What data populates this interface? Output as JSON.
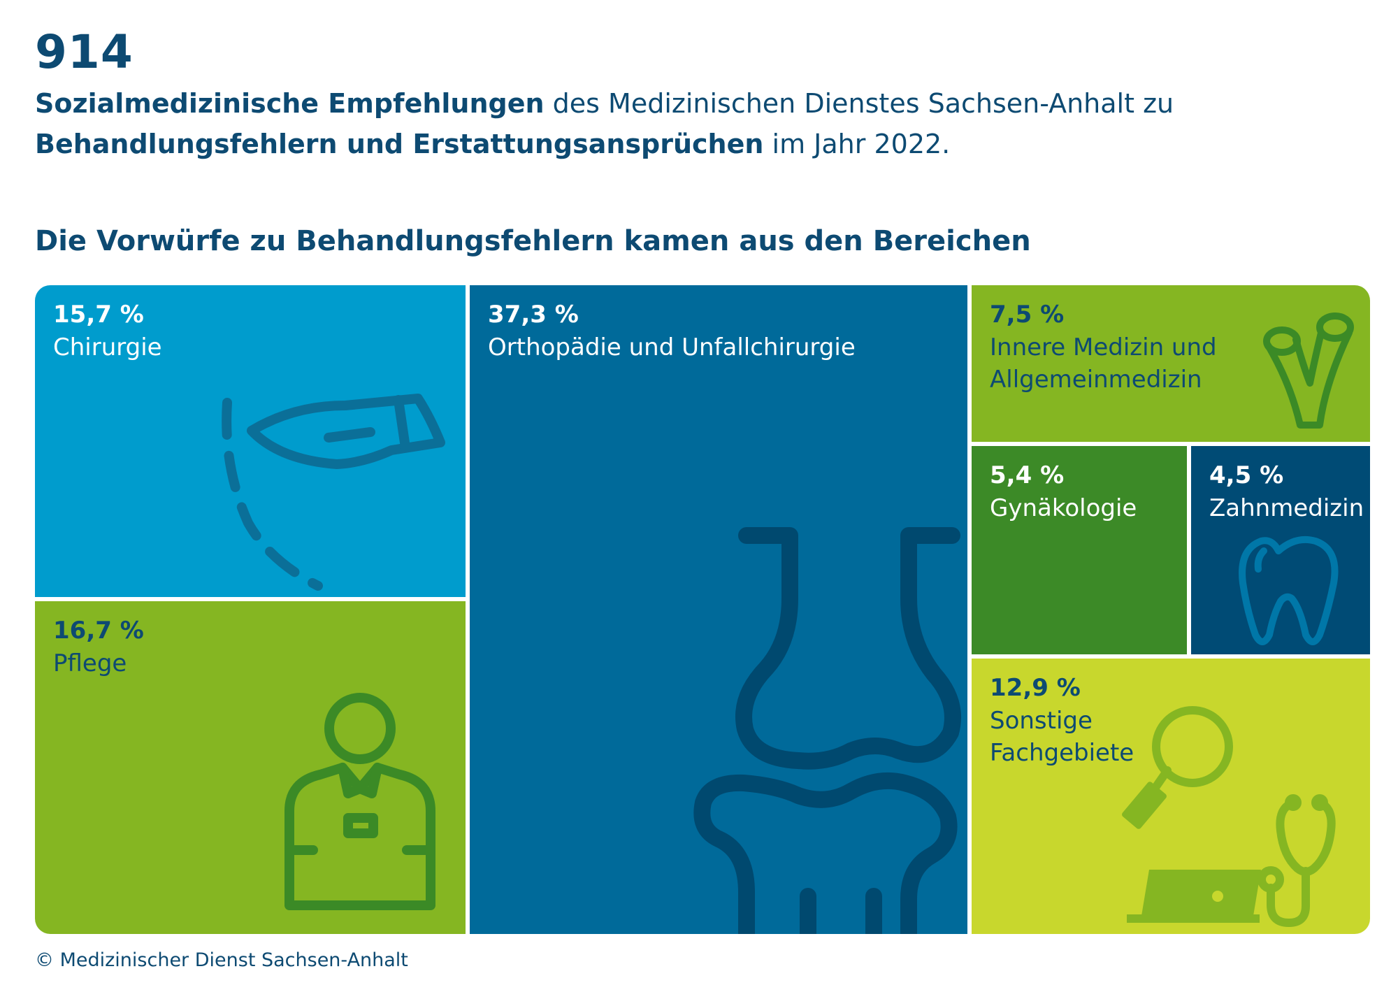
{
  "header": {
    "big_number": "914",
    "line1_bold": "Sozialmedizinische Empfehlungen",
    "line1_rest": " des Medizinischen Dienstes Sachsen-Anhalt zu",
    "line2_bold": "Behandlungsfehlern und Erstattungsansprüchen",
    "line2_rest": " im Jahr 2022.",
    "subtitle": "Die Vorwürfe zu Behandlungsfehlern kamen aus den Bereichen"
  },
  "footer": "© Medizinischer Dienst Sachsen-Anhalt",
  "chart_data": {
    "type": "treemap",
    "title": "Die Vorwürfe zu Behandlungsfehlern kamen aus den Bereichen",
    "unit": "%",
    "categories": [
      "Chirurgie",
      "Pflege",
      "Orthopädie und Unfallchirurgie",
      "Innere Medizin und Allgemeinmedizin",
      "Gynäkologie",
      "Zahnmedizin",
      "Sonstige Fachgebiete"
    ],
    "values": [
      15.7,
      16.7,
      37.3,
      7.5,
      5.4,
      4.5,
      12.9
    ],
    "tiles": [
      {
        "key": "chirurgie",
        "value": 15.7,
        "pct_label": "15,7 %",
        "label": "Chirurgie",
        "color": "#009ccd",
        "pct_color": "#ffffff",
        "label_color": "#ffffff",
        "icon": "scalpel-icon",
        "icon_color": "#0b6f98"
      },
      {
        "key": "pflege",
        "value": 16.7,
        "pct_label": "16,7 %",
        "label": "Pflege",
        "color": "#85b622",
        "pct_color": "#0d4a72",
        "label_color": "#0d4a72",
        "icon": "nurse-icon",
        "icon_color": "#3b8a26"
      },
      {
        "key": "orthopaedie",
        "value": 37.3,
        "pct_label": "37,3 %",
        "label": "Orthopädie und Unfallchirurgie",
        "color": "#006a9a",
        "pct_color": "#ffffff",
        "label_color": "#ffffff",
        "icon": "knee-joint-icon",
        "icon_color": "#00496f"
      },
      {
        "key": "innere",
        "value": 7.5,
        "pct_label": "7,5 %",
        "label": "Innere Medizin und\nAllgemeinmedizin",
        "color": "#85b622",
        "pct_color": "#0d4a72",
        "label_color": "#0d4a72",
        "icon": "bronchi-icon",
        "icon_color": "#3b8a26"
      },
      {
        "key": "gynaekologie",
        "value": 5.4,
        "pct_label": "5,4 %",
        "label": "Gynäkologie",
        "color": "#3c8a27",
        "pct_color": "#ffffff",
        "label_color": "#ffffff",
        "icon": "",
        "icon_color": ""
      },
      {
        "key": "zahnmedizin",
        "value": 4.5,
        "pct_label": "4,5 %",
        "label": "Zahnmedizin",
        "color": "#004b75",
        "pct_color": "#ffffff",
        "label_color": "#ffffff",
        "icon": "tooth-icon",
        "icon_color": "#0077a8"
      },
      {
        "key": "sonstige",
        "value": 12.9,
        "pct_label": "12,9 %",
        "label": "Sonstige\nFachgebiete",
        "color": "#c8d72d",
        "pct_color": "#0d4a72",
        "label_color": "#0d4a72",
        "icon": "search-laptop-stethoscope-icon",
        "icon_color": "#85b622"
      }
    ]
  }
}
